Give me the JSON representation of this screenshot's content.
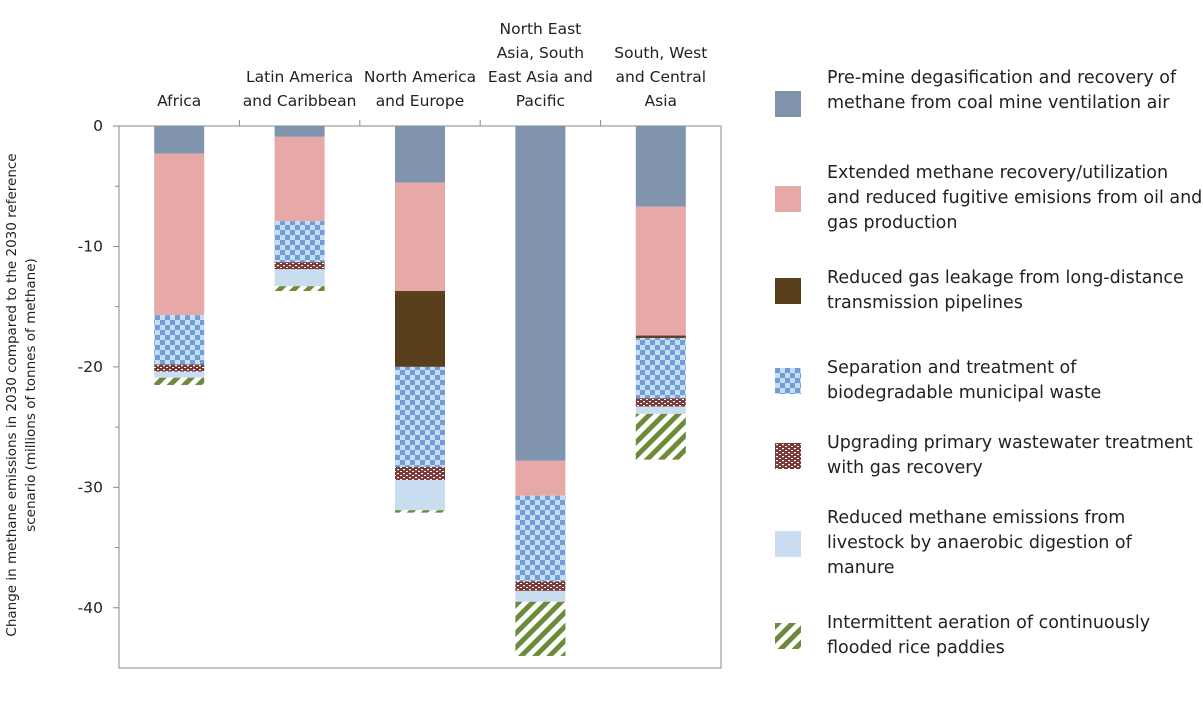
{
  "chart_data": {
    "type": "bar",
    "stacked": true,
    "ylabel": "Change in methane emissions in 2030 compared to the 2030 reference scenario (millions of tonnes of methane)",
    "ylim": [
      -45,
      0
    ],
    "yticks": [
      "0",
      "-10",
      "-20",
      "-30",
      "-40"
    ],
    "ytick_values": [
      0,
      -10,
      -20,
      -30,
      -40
    ],
    "x_axis_position": "top",
    "grid": false,
    "legend_position": "right",
    "categories": [
      "Africa",
      "Latin America and Caribbean",
      "North America and Europe",
      "North East Asia, South East Asia and Pacific",
      "South, West and Central Asia"
    ],
    "series": [
      {
        "name": "Pre-mine degasification and recovery of methane from coal mine ventilation air",
        "color": "#8095ad",
        "pattern": "solid",
        "values": [
          -2.3,
          -0.9,
          -4.7,
          -27.8,
          -6.7
        ]
      },
      {
        "name": "Extended methane recovery/utilization and reduced fugitive emisions from oil and gas production",
        "color": "#e6a9a7",
        "pattern": "solid",
        "values": [
          -13.4,
          -7.0,
          -9.0,
          -2.9,
          -10.7
        ]
      },
      {
        "name": "Reduced gas leakage from long-distance transmission pipelines",
        "color": "#5a3f1c",
        "pattern": "solid",
        "values": [
          0,
          0,
          -6.3,
          0,
          -0.2
        ]
      },
      {
        "name": "Separation and treatment of biodegradable municipal waste",
        "color": "#6f9fd8",
        "pattern": "checker",
        "values": [
          -4.1,
          -3.4,
          -8.3,
          -7.1,
          -5.0
        ]
      },
      {
        "name": "Upgrading primary wastewater treatment with gas recovery",
        "color": "#7a3b38",
        "pattern": "dots",
        "values": [
          -0.6,
          -0.6,
          -1.1,
          -0.8,
          -0.7
        ]
      },
      {
        "name": "Reduced methane emissions from livestock by anaerobic digestion of manure",
        "color": "#c9ddf0",
        "pattern": "solid",
        "values": [
          -0.5,
          -1.4,
          -2.5,
          -0.9,
          -0.6
        ]
      },
      {
        "name": "Intermittent aeration of continuously flooded rice paddies",
        "color": "#6b8a3a",
        "pattern": "stripes",
        "values": [
          -0.6,
          -0.4,
          -0.2,
          -4.5,
          -3.8
        ]
      }
    ]
  }
}
